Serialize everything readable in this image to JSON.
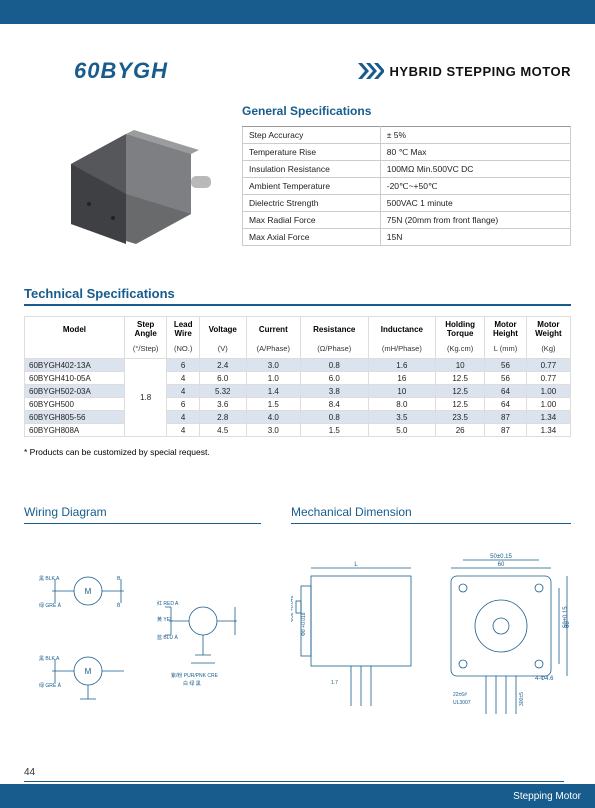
{
  "header": {
    "model_title": "60BYGH",
    "subtitle": "HYBRID STEPPING MOTOR"
  },
  "general_spec": {
    "heading": "General Specifications",
    "rows": [
      {
        "k": "Step Accuracy",
        "v": "± 5%"
      },
      {
        "k": "Temperature Rise",
        "v": "80 ℃ Max"
      },
      {
        "k": "Insulation Resistance",
        "v": "100MΩ Min.500VC DC"
      },
      {
        "k": "Ambient Temperature",
        "v": "-20℃~+50℃"
      },
      {
        "k": "Dielectric Strength",
        "v": "500VAC 1 minute"
      },
      {
        "k": "Max Radial Force",
        "v": "75N (20mm from front flange)"
      },
      {
        "k": "Max Axial Force",
        "v": "15N"
      }
    ]
  },
  "tech_spec": {
    "heading": "Technical Specifications",
    "columns": [
      "Model",
      "Step Angle",
      "Lead Wire",
      "Voltage",
      "Current",
      "Resistance",
      "Inductance",
      "Holding Torque",
      "Motor Height",
      "Motor Weight"
    ],
    "units": [
      "",
      "(°/Step)",
      "(NO.)",
      "(V)",
      "(A/Phase)",
      "(Ω/Phase)",
      "(mH/Phase)",
      "(Kg.cm)",
      "L (mm)",
      "(Kg)"
    ],
    "step_angle_merged": "1.8",
    "rows": [
      {
        "shade": true,
        "model": "60BYGH402-13A",
        "c": [
          "6",
          "2.4",
          "3.0",
          "0.8",
          "1.6",
          "10",
          "56",
          "0.77"
        ]
      },
      {
        "shade": false,
        "model": "60BYGH410-05A",
        "c": [
          "4",
          "6.0",
          "1.0",
          "6.0",
          "16",
          "12.5",
          "56",
          "0.77"
        ]
      },
      {
        "shade": true,
        "model": "60BYGH502-03A",
        "c": [
          "4",
          "5.32",
          "1.4",
          "3.8",
          "10",
          "12.5",
          "64",
          "1.00"
        ]
      },
      {
        "shade": false,
        "model": "60BYGH500",
        "c": [
          "6",
          "3.6",
          "1.5",
          "8.4",
          "8.0",
          "12.5",
          "64",
          "1.00"
        ]
      },
      {
        "shade": true,
        "model": "60BYGH805-56",
        "c": [
          "4",
          "2.8",
          "4.0",
          "0.8",
          "3.5",
          "23.5",
          "87",
          "1.34"
        ]
      },
      {
        "shade": false,
        "model": "60BYGH808A",
        "c": [
          "4",
          "4.5",
          "3.0",
          "1.5",
          "5.0",
          "26",
          "87",
          "1.34"
        ]
      }
    ],
    "note": "* Products can be customized by special request."
  },
  "diagrams": {
    "wiring": "Wiring Diagram",
    "mech": "Mechanical Dimension"
  },
  "footer": {
    "page": "44",
    "label": "Stepping Motor"
  },
  "colors": {
    "brand": "#175c8c",
    "shade_row": "#dbe4ee",
    "grid": "#cccccc"
  }
}
